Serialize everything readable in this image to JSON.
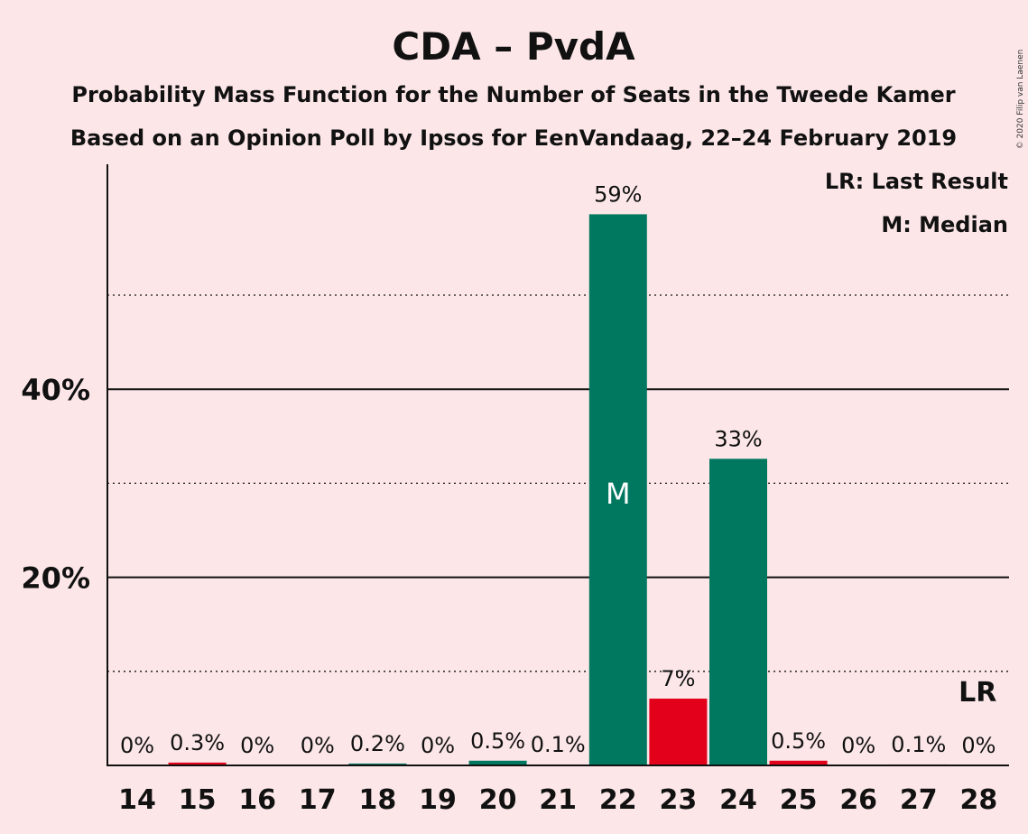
{
  "chart_data": {
    "type": "bar",
    "title": "CDA – PvdA",
    "subtitle_1": "Probability Mass Function for the Number of Seats in the Tweede Kamer",
    "subtitle_2": "Based on an Opinion Poll by Ipsos for EenVandaag, 22–24 February 2019",
    "copyright": "© 2020 Filip van Laenen",
    "legend": {
      "last_result": "LR: Last Result",
      "median": "M: Median",
      "placement": "top-right"
    },
    "ylim": [
      0,
      64
    ],
    "yticks": [
      {
        "value": 20,
        "label": "20%"
      },
      {
        "value": 40,
        "label": "40%"
      }
    ],
    "minor_gridlines": [
      10,
      30,
      50
    ],
    "grid": true,
    "categories": [
      "14",
      "15",
      "16",
      "17",
      "18",
      "19",
      "20",
      "21",
      "22",
      "23",
      "24",
      "25",
      "26",
      "27",
      "28"
    ],
    "values": [
      0,
      0.3,
      0,
      0,
      0.2,
      0,
      0.5,
      0.1,
      58.6,
      7.1,
      32.6,
      0.5,
      0,
      0.1,
      0
    ],
    "data_labels": [
      "0%",
      "0.3%",
      "0%",
      "0%",
      "0.2%",
      "0%",
      "0.5%",
      "0.1%",
      "59%",
      "7%",
      "33%",
      "0.5%",
      "0%",
      "0.1%",
      "0%"
    ],
    "colors": [
      "#00785f",
      "#e3001b",
      "#00785f",
      "#e3001b",
      "#00785f",
      "#e3001b",
      "#00785f",
      "#e3001b",
      "#00785f",
      "#e3001b",
      "#00785f",
      "#e3001b",
      "#00785f",
      "#e3001b",
      "#00785f"
    ],
    "median_marker": {
      "category": "22",
      "text": "M"
    },
    "last_result_marker": {
      "category": "28",
      "text": "LR"
    }
  }
}
